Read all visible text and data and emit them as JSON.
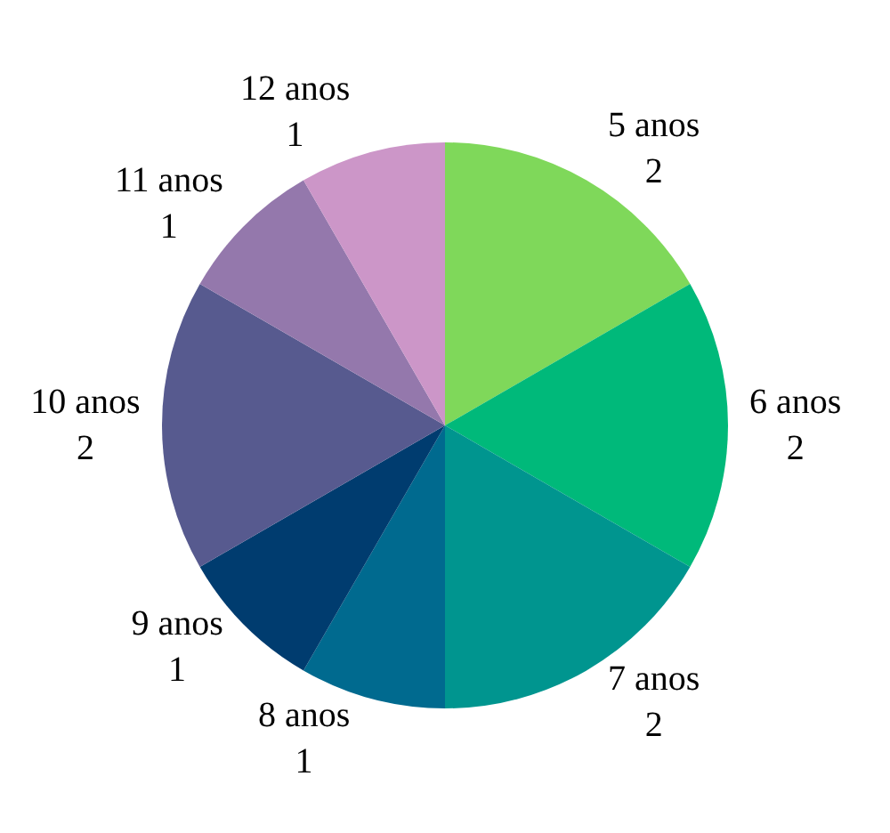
{
  "chart_data": {
    "type": "pie",
    "categories": [
      "5 anos",
      "6 anos",
      "7 anos",
      "8 anos",
      "9 anos",
      "10 anos",
      "11 anos",
      "12 anos"
    ],
    "values": [
      2,
      2,
      2,
      1,
      1,
      2,
      1,
      1
    ],
    "colors": [
      "#7fd85a",
      "#00b97a",
      "#00958f",
      "#006a8f",
      "#003c6f",
      "#575a8f",
      "#9478ac",
      "#cc96c8"
    ],
    "data_labels": true,
    "legend": false
  }
}
